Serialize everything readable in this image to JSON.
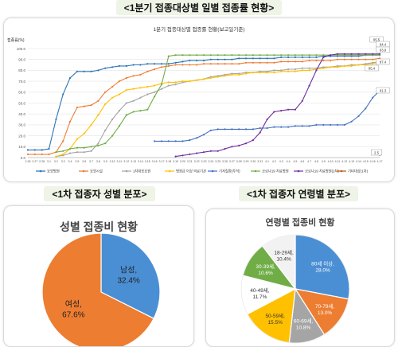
{
  "headers": {
    "daily": "<1분기 접종대상별 일별 접종률 현황>",
    "gender": "<1차 접종자 성별 분포>",
    "age": "<1차 접종자 연령별 분포>"
  },
  "chart_data": [
    {
      "type": "line",
      "title": "1분기 접종대상별 접종률 현황(보고일기준)",
      "ylabel": "접종률(%)",
      "ylim": [
        0,
        100
      ],
      "yticks": [
        "0.0",
        "10.0",
        "20.0",
        "30.0",
        "40.0",
        "50.0",
        "60.0",
        "70.0",
        "80.0",
        "90.0",
        "100.0"
      ],
      "x": [
        "2.26",
        "2.27",
        "2.28",
        "3.1",
        "3.2",
        "3.3",
        "3.4",
        "3.5",
        "3.6",
        "3.7",
        "3.8",
        "3.9",
        "3.10",
        "3.11",
        "3.12",
        "3.13",
        "3.14",
        "3.15",
        "3.16",
        "3.17",
        "3.18",
        "3.19",
        "3.20",
        "3.21",
        "3.22",
        "3.23",
        "3.24",
        "3.25",
        "3.26",
        "3.27",
        "3.28",
        "3.29",
        "3.30",
        "3.31",
        "4.1",
        "4.2",
        "4.3",
        "4.4",
        "4.5",
        "4.6",
        "4.7",
        "4.8",
        "4.9",
        "4.10",
        "4.11",
        "4.12",
        "4.13",
        "4.14",
        "4.15",
        "4.16",
        "4.17"
      ],
      "series": [
        {
          "name": "요양병원",
          "color": "#2e75b6",
          "values": [
            7,
            7,
            7,
            8,
            35,
            58,
            73,
            79,
            79,
            79,
            80,
            82,
            83,
            84,
            84,
            85,
            85,
            86,
            86,
            86,
            86,
            87,
            88,
            89,
            89,
            89,
            90,
            90,
            90,
            90,
            91,
            91,
            91,
            91,
            91,
            91,
            92,
            92,
            92,
            92,
            92,
            92,
            93,
            93,
            93,
            93,
            93,
            93,
            94,
            94,
            94
          ]
        },
        {
          "name": "요양시설",
          "color": "#ed7d31",
          "values": [
            3,
            3,
            3,
            3,
            5,
            15,
            33,
            46,
            47,
            48,
            52,
            60,
            65,
            70,
            73,
            75,
            76,
            79,
            81,
            83,
            84,
            85,
            85,
            85,
            85,
            86,
            86,
            86,
            86,
            86,
            86,
            87,
            87,
            87,
            87,
            87,
            88,
            88,
            88,
            88,
            89,
            89,
            89,
            89,
            90,
            90,
            90,
            90,
            90,
            90,
            91
          ]
        },
        {
          "name": "1차대응요원",
          "color": "#a5a5a5",
          "values": [
            null,
            null,
            null,
            null,
            1,
            2,
            4,
            5,
            5,
            6,
            13,
            25,
            35,
            43,
            50,
            52,
            55,
            58,
            60,
            63,
            66,
            67,
            69,
            70,
            71,
            72,
            74,
            75,
            76,
            77,
            77,
            78,
            78,
            79,
            79,
            80,
            80,
            81,
            81,
            82,
            82,
            82,
            83,
            83,
            84,
            84,
            85,
            85,
            86,
            87,
            88
          ]
        },
        {
          "name": "병원급 이상 의료기관",
          "color": "#ffc000",
          "values": [
            null,
            null,
            null,
            null,
            1,
            3,
            8,
            17,
            22,
            30,
            39,
            49,
            55,
            58,
            62,
            63,
            64,
            65,
            66,
            68,
            69,
            69,
            70,
            70,
            71,
            72,
            73,
            74,
            75,
            76,
            76,
            77,
            78,
            78,
            78,
            78,
            79,
            79,
            79,
            80,
            80,
            81,
            82,
            83,
            83,
            84,
            84,
            85,
            85,
            86,
            86.5
          ]
        },
        {
          "name": "기저질환(투석)",
          "color": "#4472c4",
          "values": [
            null,
            null,
            null,
            null,
            null,
            null,
            null,
            null,
            null,
            null,
            null,
            null,
            null,
            null,
            null,
            null,
            null,
            null,
            15,
            15,
            15,
            15,
            15,
            16,
            18,
            21,
            25,
            26,
            26,
            26,
            26,
            26,
            26,
            27,
            27,
            28,
            28,
            28,
            29,
            29,
            29,
            30,
            30,
            30,
            30,
            30,
            33,
            38,
            45,
            55,
            61.3
          ]
        },
        {
          "name": "코로나19 치료병원",
          "color": "#70ad47",
          "values": [
            null,
            null,
            null,
            null,
            5,
            6,
            8,
            9,
            9,
            10,
            11,
            13,
            20,
            29,
            39,
            42,
            43,
            44,
            56,
            67,
            93,
            94,
            94,
            94,
            94,
            94,
            94,
            94,
            94,
            94,
            94,
            94,
            94,
            94,
            94,
            94,
            94,
            94,
            94,
            94,
            94,
            94,
            94,
            94,
            94,
            94,
            94,
            94,
            94,
            94,
            94
          ]
        },
        {
          "name": "코로나19 치료병원(2차)",
          "color": "#7030a0",
          "values": [
            null,
            null,
            null,
            null,
            null,
            null,
            null,
            null,
            null,
            null,
            null,
            null,
            null,
            null,
            null,
            null,
            null,
            null,
            null,
            null,
            null,
            1,
            2,
            3,
            4,
            5,
            6,
            6,
            8,
            10,
            11,
            13,
            16,
            23,
            35,
            42,
            43,
            44,
            44,
            52,
            66,
            80,
            92,
            94,
            95,
            95,
            95,
            95,
            95,
            95,
            95
          ]
        },
        {
          "name": "기타대상(1차)",
          "color": "#c55a11",
          "values": [
            null,
            null,
            null,
            null,
            null,
            null,
            null,
            null,
            null,
            null,
            null,
            null,
            null,
            null,
            null,
            null,
            null,
            null,
            null,
            null,
            null,
            null,
            null,
            null,
            null,
            null,
            null,
            null,
            null,
            null,
            null,
            null,
            null,
            null,
            null,
            null,
            null,
            null,
            null,
            null,
            null,
            null,
            null,
            null,
            null,
            null,
            null,
            null,
            null,
            null,
            2.5
          ]
        }
      ],
      "end_labels": [
        "95.5",
        "94.4",
        "93.9",
        "87.4",
        "85.4",
        "61.3",
        "2.5"
      ]
    },
    {
      "type": "pie",
      "title": "성별 접종비 현황",
      "slices": [
        {
          "label": "남성,",
          "value_label": "32.4%",
          "value": 32.4,
          "color": "#4a8fd4"
        },
        {
          "label": "여성,",
          "value_label": "67.6%",
          "value": 67.6,
          "color": "#ed7d31"
        }
      ]
    },
    {
      "type": "pie",
      "title": "연령별 접종비 현황",
      "slices": [
        {
          "label": "80세 이상,",
          "value_label": "28.0%",
          "value": 28.0,
          "color": "#4a8fd4"
        },
        {
          "label": "70-79세,",
          "value_label": "13.0%",
          "value": 13.0,
          "color": "#ed7d31"
        },
        {
          "label": "60-69세,",
          "value_label": "10.8%",
          "value": 10.8,
          "color": "#a5a5a5"
        },
        {
          "label": "50-59세,",
          "value_label": "15.5%",
          "value": 15.5,
          "color": "#ffc000"
        },
        {
          "label": "40-49세,",
          "value_label": "11.7%",
          "value": 11.7,
          "color": "#ffffff"
        },
        {
          "label": "30-39세,",
          "value_label": "10.6%",
          "value": 10.6,
          "color": "#70ad47"
        },
        {
          "label": "18-29세,",
          "value_label": "10.4%",
          "value": 10.4,
          "color": "#f2f2f2"
        }
      ]
    }
  ]
}
